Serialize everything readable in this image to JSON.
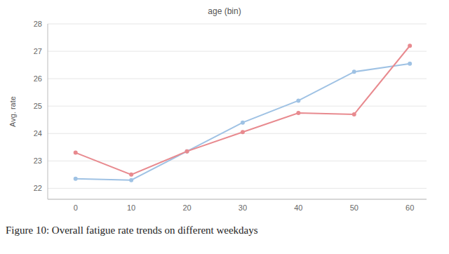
{
  "chart_data": {
    "type": "line",
    "title": "age (bin)",
    "y_label": "Avg. rate",
    "caption": "Figure 10: Overall fatigue rate trends on different weekdays",
    "x": [
      0,
      10,
      20,
      30,
      40,
      50,
      60
    ],
    "series": [
      {
        "color": "#9fc2e4",
        "marker": "circle",
        "values": [
          22.35,
          22.3,
          23.35,
          24.4,
          25.2,
          26.25,
          26.55
        ]
      },
      {
        "color": "#e88a8f",
        "marker": "circle",
        "values": [
          23.3,
          22.5,
          23.35,
          24.05,
          24.75,
          24.7,
          27.2
        ]
      }
    ],
    "xlim": [
      -5,
      63
    ],
    "xticks": [
      0,
      10,
      20,
      30,
      40,
      50,
      60
    ],
    "ylim": [
      21.6,
      28
    ],
    "yticks": [
      22,
      23,
      24,
      25,
      26,
      27,
      28
    ],
    "grid": true
  }
}
